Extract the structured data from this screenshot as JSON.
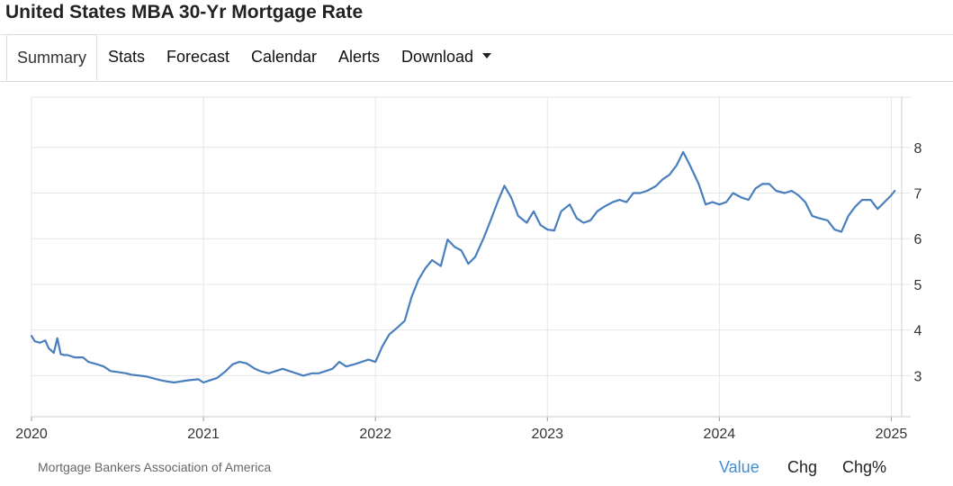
{
  "page": {
    "title": "United States MBA 30-Yr Mortgage Rate"
  },
  "tabs": [
    {
      "label": "Summary",
      "active": true
    },
    {
      "label": "Stats"
    },
    {
      "label": "Forecast"
    },
    {
      "label": "Calendar"
    },
    {
      "label": "Alerts"
    },
    {
      "label": "Download",
      "icon": "caret-down-icon"
    }
  ],
  "footer": {
    "source": "Mortgage Bankers Association of America",
    "buttons": [
      {
        "label": "Value",
        "active": true
      },
      {
        "label": "Chg"
      },
      {
        "label": "Chg%"
      }
    ]
  },
  "colors": {
    "line": "#4a7fbd",
    "active_button": "#3a8fd9",
    "grid": "#e6e6e6"
  },
  "chart_data": {
    "type": "line",
    "title": "",
    "xlabel": "",
    "ylabel": "",
    "xlim": [
      2020,
      2025.05
    ],
    "ylim": [
      2.1,
      9.1
    ],
    "grid": true,
    "x_ticks": [
      "2020",
      "2021",
      "2022",
      "2023",
      "2024",
      "2025"
    ],
    "y_ticks": [
      "3",
      "4",
      "5",
      "6",
      "7",
      "8"
    ],
    "y_axis_side": "right",
    "series": [
      {
        "x": [
          2020.0,
          2020.02,
          2020.05,
          2020.08,
          2020.1,
          2020.13,
          2020.15,
          2020.17,
          2020.19,
          2020.21,
          2020.25,
          2020.3,
          2020.33,
          2020.38,
          2020.42,
          2020.46,
          2020.5,
          2020.55,
          2020.58,
          2020.63,
          2020.67,
          2020.7,
          2020.75,
          2020.79,
          2020.83,
          2020.88,
          2020.92,
          2020.97,
          2021.0,
          2021.04,
          2021.08,
          2021.13,
          2021.17,
          2021.21,
          2021.25,
          2021.3,
          2021.33,
          2021.38,
          2021.42,
          2021.46,
          2021.5,
          2021.54,
          2021.58,
          2021.63,
          2021.67,
          2021.71,
          2021.75,
          2021.79,
          2021.83,
          2021.88,
          2021.92,
          2021.96,
          2022.0,
          2022.04,
          2022.08,
          2022.13,
          2022.17,
          2022.21,
          2022.25,
          2022.29,
          2022.33,
          2022.38,
          2022.42,
          2022.46,
          2022.5,
          2022.54,
          2022.58,
          2022.63,
          2022.67,
          2022.71,
          2022.75,
          2022.79,
          2022.83,
          2022.88,
          2022.92,
          2022.96,
          2023.0,
          2023.04,
          2023.08,
          2023.13,
          2023.17,
          2023.21,
          2023.25,
          2023.29,
          2023.33,
          2023.38,
          2023.42,
          2023.46,
          2023.5,
          2023.54,
          2023.58,
          2023.63,
          2023.67,
          2023.71,
          2023.75,
          2023.79,
          2023.83,
          2023.88,
          2023.92,
          2023.96,
          2024.0,
          2024.04,
          2024.08,
          2024.13,
          2024.17,
          2024.21,
          2024.25,
          2024.29,
          2024.33,
          2024.38,
          2024.42,
          2024.46,
          2024.5,
          2024.54,
          2024.58,
          2024.63,
          2024.67,
          2024.71,
          2024.75,
          2024.79,
          2024.83,
          2024.88,
          2024.92,
          2024.96,
          2025.0,
          2025.02
        ],
        "y": [
          3.87,
          3.75,
          3.72,
          3.77,
          3.6,
          3.5,
          3.82,
          3.47,
          3.45,
          3.45,
          3.4,
          3.4,
          3.3,
          3.25,
          3.2,
          3.1,
          3.08,
          3.05,
          3.02,
          3.0,
          2.98,
          2.95,
          2.9,
          2.87,
          2.85,
          2.88,
          2.9,
          2.92,
          2.85,
          2.9,
          2.95,
          3.1,
          3.25,
          3.3,
          3.27,
          3.15,
          3.1,
          3.05,
          3.1,
          3.15,
          3.1,
          3.05,
          3.0,
          3.05,
          3.05,
          3.1,
          3.15,
          3.3,
          3.2,
          3.25,
          3.3,
          3.35,
          3.3,
          3.64,
          3.9,
          4.06,
          4.2,
          4.72,
          5.1,
          5.35,
          5.53,
          5.4,
          5.98,
          5.82,
          5.74,
          5.45,
          5.6,
          6.02,
          6.4,
          6.8,
          7.16,
          6.9,
          6.5,
          6.35,
          6.6,
          6.3,
          6.2,
          6.18,
          6.6,
          6.75,
          6.45,
          6.35,
          6.4,
          6.6,
          6.7,
          6.8,
          6.85,
          6.8,
          7.0,
          7.0,
          7.05,
          7.15,
          7.3,
          7.4,
          7.6,
          7.9,
          7.6,
          7.2,
          6.75,
          6.8,
          6.75,
          6.8,
          7.0,
          6.9,
          6.85,
          7.1,
          7.2,
          7.2,
          7.05,
          7.0,
          7.05,
          6.95,
          6.8,
          6.5,
          6.45,
          6.4,
          6.2,
          6.15,
          6.5,
          6.7,
          6.85,
          6.85,
          6.65,
          6.8,
          6.95,
          7.05
        ]
      }
    ]
  }
}
